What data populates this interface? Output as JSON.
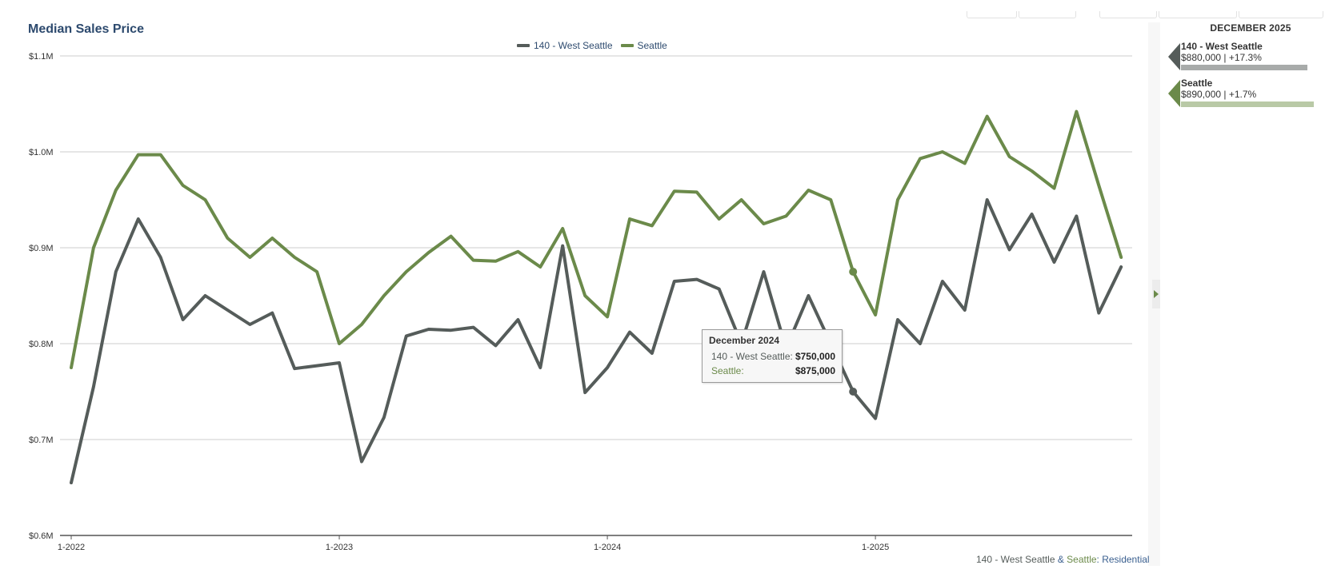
{
  "chart_data": {
    "type": "line",
    "title": "Median Sales Price",
    "x_tick_labels": [
      "1-2022",
      "1-2023",
      "1-2024",
      "1-2025"
    ],
    "y_tick_labels": [
      "$0.6M",
      "$0.7M",
      "$0.8M",
      "$0.9M",
      "$1.0M",
      "$1.1M"
    ],
    "ylim": [
      600000,
      1100000
    ],
    "y_ticks": [
      600000,
      700000,
      800000,
      900000,
      1000000,
      1100000
    ],
    "x": [
      "2022-01",
      "2022-02",
      "2022-03",
      "2022-04",
      "2022-05",
      "2022-06",
      "2022-07",
      "2022-08",
      "2022-09",
      "2022-10",
      "2022-11",
      "2022-12",
      "2023-01",
      "2023-02",
      "2023-03",
      "2023-04",
      "2023-05",
      "2023-06",
      "2023-07",
      "2023-08",
      "2023-09",
      "2023-10",
      "2023-11",
      "2023-12",
      "2024-01",
      "2024-02",
      "2024-03",
      "2024-04",
      "2024-05",
      "2024-06",
      "2024-07",
      "2024-08",
      "2024-09",
      "2024-10",
      "2024-11",
      "2024-12",
      "2025-01",
      "2025-02",
      "2025-03",
      "2025-04",
      "2025-05",
      "2025-06",
      "2025-07",
      "2025-08",
      "2025-09",
      "2025-10",
      "2025-11",
      "2025-12"
    ],
    "series": [
      {
        "name": "140 - West Seattle",
        "color": "#555c5a",
        "values": [
          655000,
          755000,
          875000,
          930000,
          890000,
          825000,
          850000,
          835000,
          820000,
          832000,
          774000,
          777000,
          780000,
          677000,
          723000,
          808000,
          815000,
          814000,
          817000,
          798000,
          825000,
          775000,
          902000,
          749000,
          775000,
          812000,
          790000,
          865000,
          867000,
          857000,
          800000,
          875000,
          795000,
          850000,
          800000,
          750000,
          722000,
          825000,
          800000,
          865000,
          835000,
          950000,
          898000,
          935000,
          885000,
          933000,
          832000,
          880000
        ]
      },
      {
        "name": "Seattle",
        "color": "#6b8a4a",
        "values": [
          775000,
          900000,
          960000,
          997000,
          997000,
          965000,
          950000,
          910000,
          890000,
          910000,
          890000,
          875000,
          800000,
          820000,
          850000,
          875000,
          895000,
          912000,
          887000,
          886000,
          896000,
          880000,
          920000,
          850000,
          828000,
          930000,
          923000,
          959000,
          958000,
          930000,
          950000,
          925000,
          933000,
          960000,
          950000,
          875000,
          830000,
          950000,
          993000,
          1000000,
          988000,
          1037000,
          995000,
          980000,
          962000,
          1042000,
          965000,
          890000
        ]
      }
    ],
    "legend": [
      "140 - West Seattle",
      "Seattle"
    ],
    "legend_position": "top-center",
    "grid": true,
    "highlight_index": 35,
    "tooltip": {
      "title": "December 2024",
      "rows": [
        {
          "label": "140 - West Seattle:",
          "value": "$750,000",
          "color": "#555c5a"
        },
        {
          "label": "Seattle:",
          "value": "$875,000",
          "color": "#6b8a4a"
        }
      ]
    }
  },
  "side_panel": {
    "heading": "DECEMBER 2025",
    "entries": [
      {
        "name": "140 - West Seattle",
        "value": "$880,000 | +17.3%",
        "color": "#555c5a",
        "bar_color": "#a8abaa",
        "bar_fraction": 0.79
      },
      {
        "name": "Seattle",
        "value": "$890,000 | +1.7%",
        "color": "#6b8a4a",
        "bar_color": "#b9c9a6",
        "bar_fraction": 0.83
      }
    ]
  },
  "footer": {
    "part1": "140 - West Seattle",
    "sep1": " & ",
    "part2": "Seattle",
    "sep2": ": ",
    "part3": "Residential",
    "color1": "#555c5a",
    "color2": "#6b8a4a",
    "color3": "#3a5f8f"
  }
}
